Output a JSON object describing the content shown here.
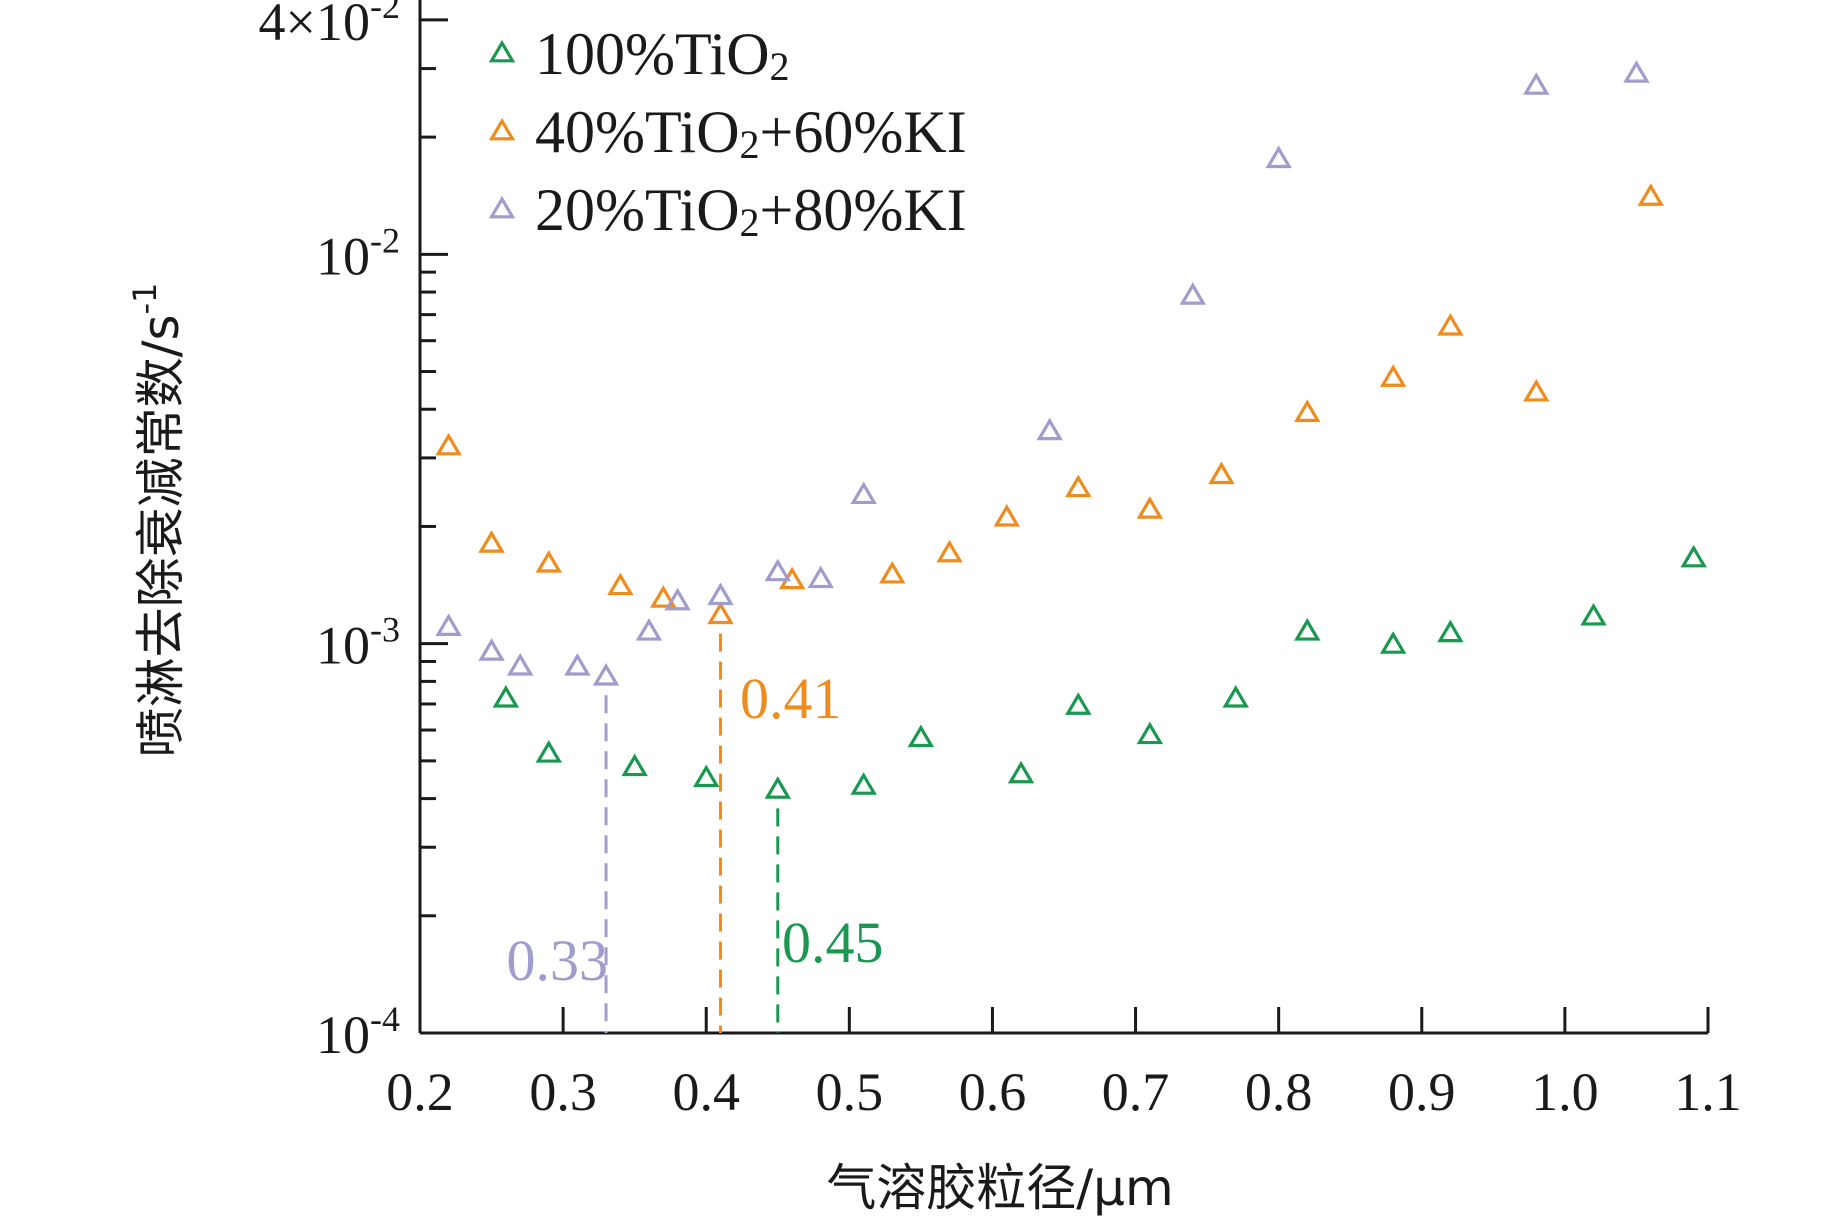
{
  "chart_data": {
    "type": "scatter",
    "xlabel": "气溶胶粒径/μm",
    "ylabel": "喷淋去除衰减常数/s",
    "ylabel_sup": "-1",
    "xlim": [
      0.2,
      1.1
    ],
    "ylim": [
      0.0001,
      0.045
    ],
    "yscale": "log",
    "legend_position": "top-left",
    "x_ticks": [
      "0.2",
      "0.3",
      "0.4",
      "0.5",
      "0.6",
      "0.7",
      "0.8",
      "0.9",
      "1.0",
      "1.1"
    ],
    "y_ticks": [
      {
        "value": 0.0001,
        "base": "10",
        "exp": "-4"
      },
      {
        "value": 0.001,
        "base": "10",
        "exp": "-3"
      },
      {
        "value": 0.01,
        "base": "10",
        "exp": "-2"
      },
      {
        "value": 0.04,
        "base": "4×10",
        "exp": "-2"
      }
    ],
    "series": [
      {
        "name_main": "100%TiO",
        "name_sub": "2",
        "name_rest": "",
        "color": "#1a9850",
        "x": [
          0.26,
          0.29,
          0.35,
          0.4,
          0.45,
          0.51,
          0.55,
          0.62,
          0.66,
          0.71,
          0.77,
          0.82,
          0.88,
          0.92,
          1.02,
          1.09
        ],
        "y": [
          0.00072,
          0.00052,
          0.00048,
          0.00045,
          0.00042,
          0.00043,
          0.00057,
          0.00046,
          0.00069,
          0.00058,
          0.00072,
          0.00107,
          0.00099,
          0.00106,
          0.00117,
          0.00165
        ]
      },
      {
        "name_main": "40%TiO",
        "name_sub": "2",
        "name_rest": "+60%KI",
        "color": "#ee8c1e",
        "x": [
          0.22,
          0.25,
          0.29,
          0.34,
          0.37,
          0.41,
          0.46,
          0.53,
          0.57,
          0.61,
          0.66,
          0.71,
          0.76,
          0.82,
          0.88,
          0.92,
          0.98,
          1.06
        ],
        "y": [
          0.0032,
          0.0018,
          0.0016,
          0.0014,
          0.0013,
          0.00118,
          0.00145,
          0.0015,
          0.0017,
          0.0021,
          0.0025,
          0.0022,
          0.0027,
          0.0039,
          0.0048,
          0.0065,
          0.0044,
          0.014
        ]
      },
      {
        "name_main": "20%TiO",
        "name_sub": "2",
        "name_rest": "+80%KI",
        "color": "#a09ccc",
        "x": [
          0.22,
          0.25,
          0.27,
          0.31,
          0.33,
          0.36,
          0.38,
          0.41,
          0.45,
          0.48,
          0.51,
          0.64,
          0.74,
          0.8,
          0.98,
          1.05
        ],
        "y": [
          0.0011,
          0.00095,
          0.00087,
          0.00087,
          0.00082,
          0.00107,
          0.00128,
          0.00132,
          0.00152,
          0.00146,
          0.0024,
          0.0035,
          0.0078,
          0.0175,
          0.027,
          0.029
        ]
      }
    ],
    "annotations": [
      {
        "label": "0.33",
        "x": 0.33,
        "y": 0.00082,
        "color": "#a09ccc"
      },
      {
        "label": "0.41",
        "x": 0.41,
        "y": 0.00118,
        "color": "#ee8c1e"
      },
      {
        "label": "0.45",
        "x": 0.45,
        "y": 0.00042,
        "color": "#1a9850"
      }
    ]
  }
}
